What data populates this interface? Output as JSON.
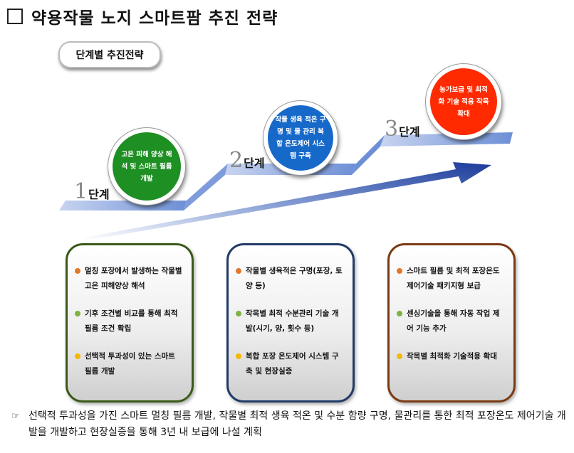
{
  "title": "약용작물 노지 스마트팜 추진 전략",
  "badge": "단계별 추진전략",
  "stages": [
    {
      "num": "1",
      "label": "단계",
      "text": "고온 피해 양상 해석 및 스마트 필름 개발",
      "color": "#1e8f23"
    },
    {
      "num": "2",
      "label": "단계",
      "text": "작물 생육 적온 구명 및 물 관리 복합 온도제어 시스템 구축",
      "color": "#1769c9"
    },
    {
      "num": "3",
      "label": "단계",
      "text": "농가보급 및 최적화 기술 적용 작목 확대",
      "color": "#ff2a00"
    }
  ],
  "panels": [
    {
      "border_color": "#3a5a1a",
      "items": [
        {
          "text": "멀칭 포장에서 발생하는 작물별 고온 피해양상 해석",
          "dot_color": "#e2782a"
        },
        {
          "text": "기후 조건별 비교를 통해 최적 필름 조건 확립",
          "dot_color": "#7cb342"
        },
        {
          "text": "선택적 투과성이 있는 스마트 필름 개발",
          "dot_color": "#f5b800"
        }
      ]
    },
    {
      "border_color": "#223a66",
      "items": [
        {
          "text": "작물별 생육적온 구명(포장, 토양 등)",
          "dot_color": "#e2782a"
        },
        {
          "text": "작목별 최적 수분관리 기술 개발(시기, 양, 횟수 등)",
          "dot_color": "#7cb342"
        },
        {
          "text": "복합 포장 온도제어 시스템 구축 및 현장실증",
          "dot_color": "#f5b800"
        }
      ]
    },
    {
      "border_color": "#7a3a14",
      "items": [
        {
          "text": "스마트 필름 및 최적 포장온도 제어기술 패키지형 보급",
          "dot_color": "#e2782a"
        },
        {
          "text": "센싱기술을 통해 자동 작업 제어 기능 추가",
          "dot_color": "#7cb342"
        },
        {
          "text": "작목별 최적화 기술적용 확대",
          "dot_color": "#f5b800"
        }
      ]
    }
  ],
  "note": {
    "icon": "pointing-hand-icon",
    "text": "선택적 투과성을 가진 스마트 멀칭 필름 개발, 작물별 최적 생육 적온 및 수분 함량 구명, 물관리를 통한 최적 포장온도 제어기술 개발을 개발하고 현장실증을 통해 3년 내 보급에 나설 계획"
  }
}
